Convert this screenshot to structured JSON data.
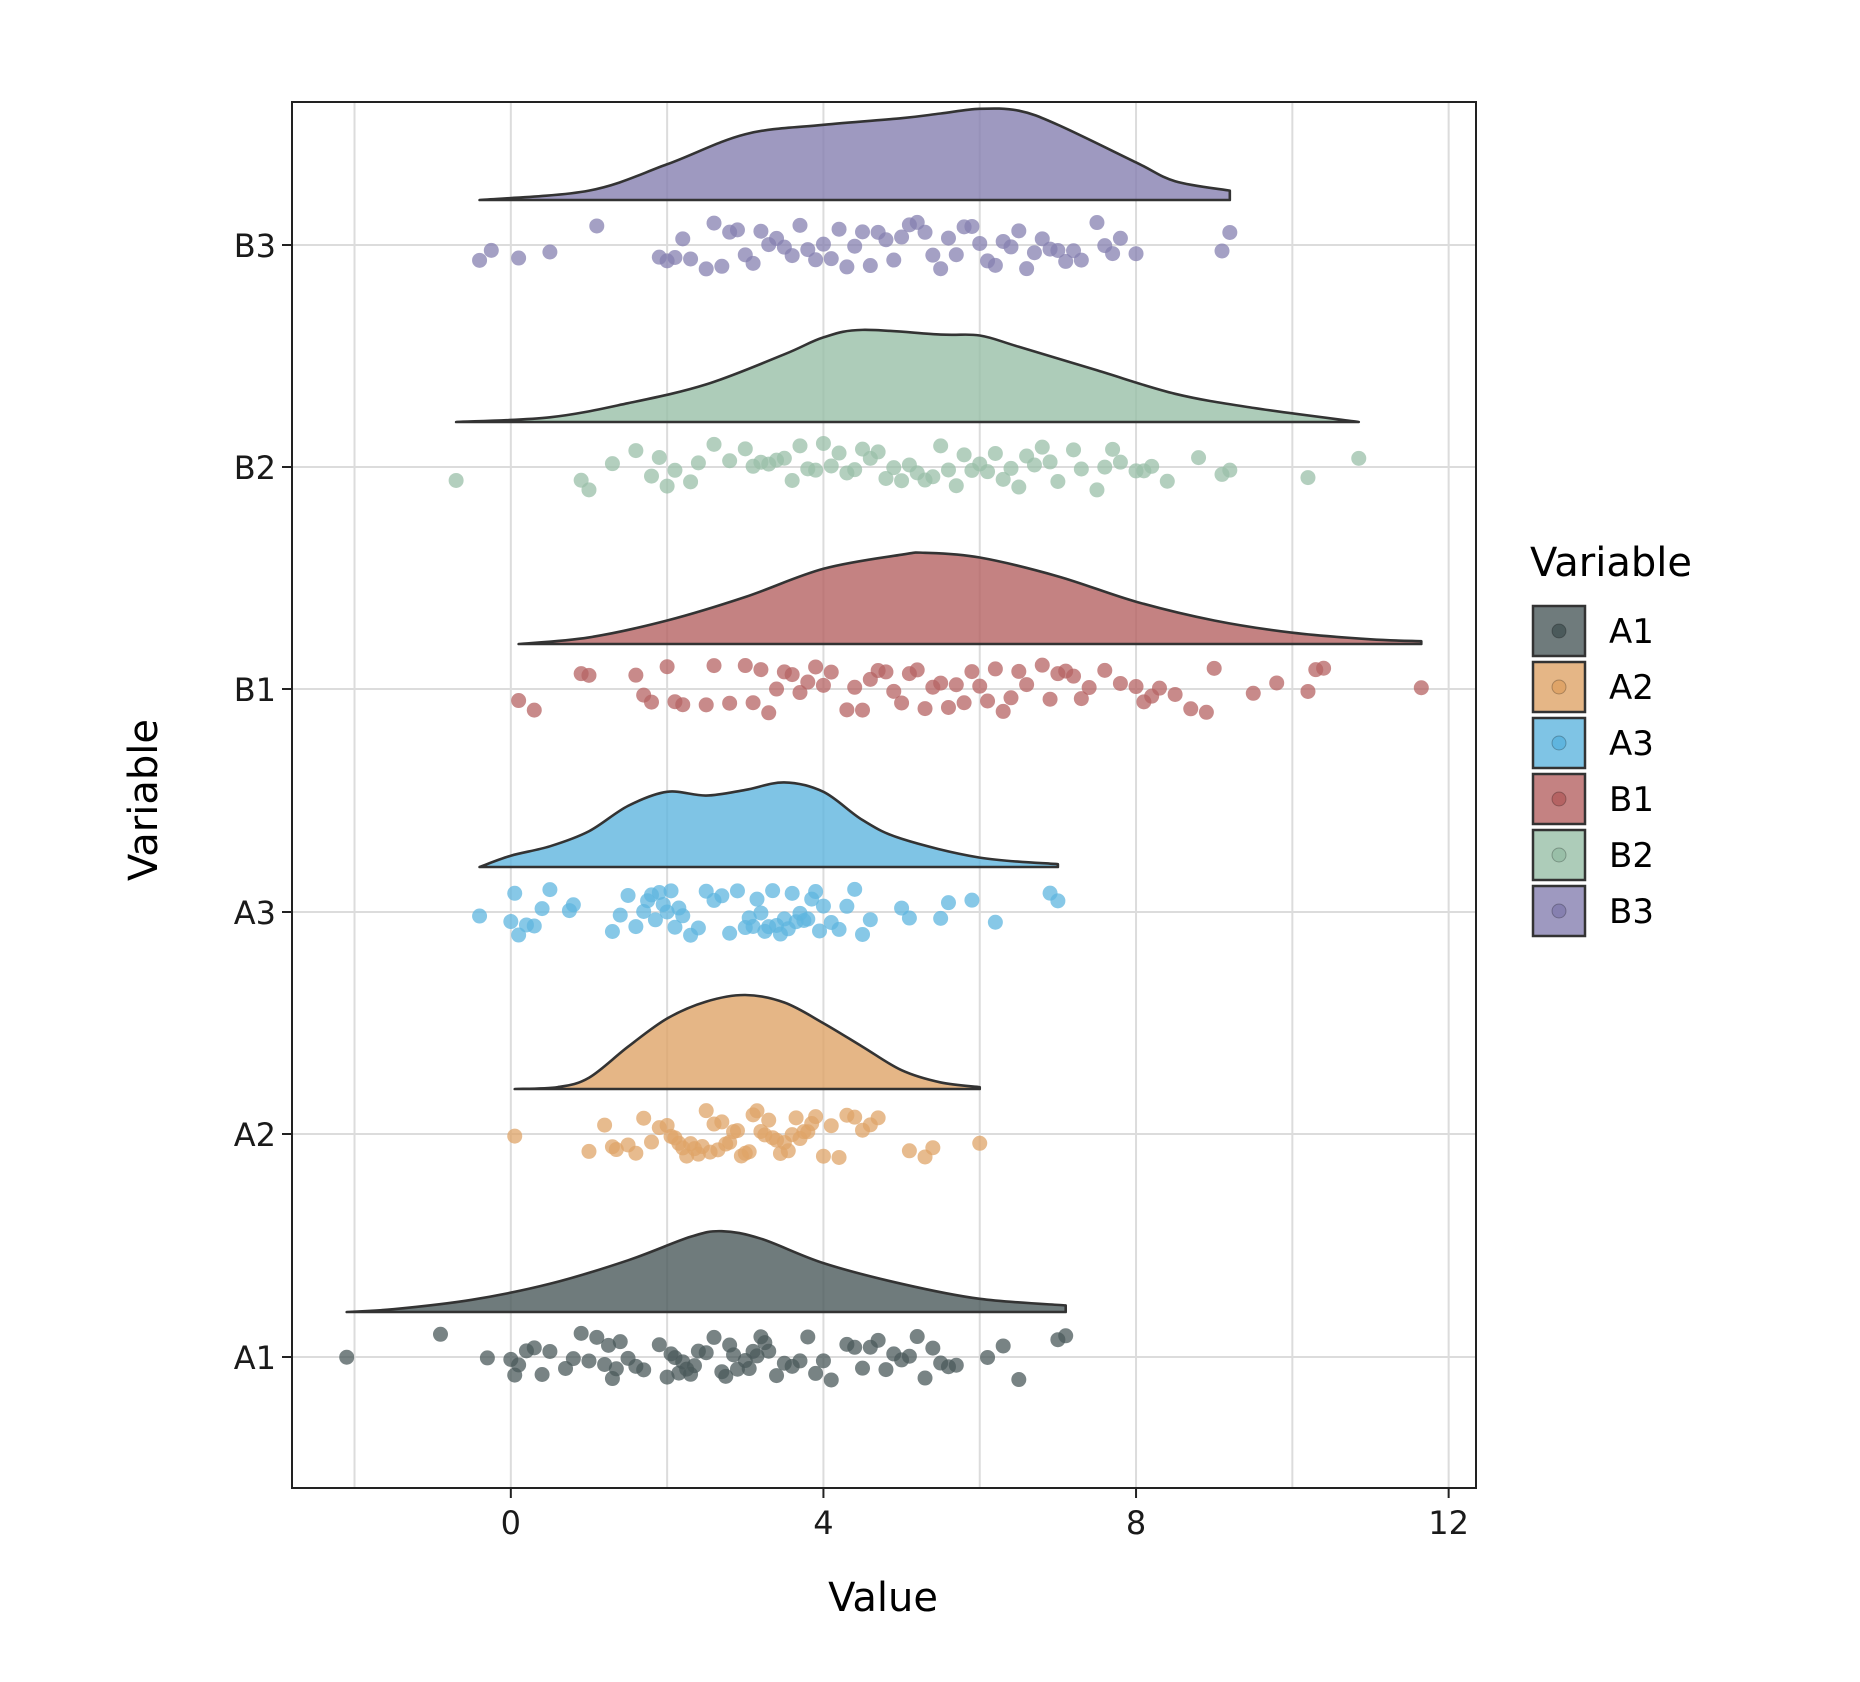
{
  "chart_data": {
    "type": "raincloud",
    "xlabel": "Value",
    "ylabel": "Variable",
    "xlim": [
      -2.8,
      12.35
    ],
    "x_ticks": [
      0,
      4,
      8,
      12
    ],
    "x_gridlines": [
      -2,
      0,
      2,
      4,
      6,
      8,
      10,
      12
    ],
    "grid": true,
    "legend": {
      "title": "Variable",
      "placement": "right"
    },
    "categories": [
      "A1",
      "A2",
      "A3",
      "B1",
      "B2",
      "B3"
    ],
    "series": [
      {
        "name": "A1",
        "color": "#4b5a5b",
        "min": -2.1,
        "max": 7.1,
        "density": [
          [
            -2.1,
            0.0
          ],
          [
            -1.5,
            0.03
          ],
          [
            -0.5,
            0.13
          ],
          [
            0.5,
            0.3
          ],
          [
            1.5,
            0.55
          ],
          [
            2.3,
            0.8
          ],
          [
            2.7,
            0.86
          ],
          [
            3.2,
            0.78
          ],
          [
            4.0,
            0.52
          ],
          [
            5.0,
            0.3
          ],
          [
            6.0,
            0.14
          ],
          [
            7.1,
            0.07
          ]
        ],
        "points": [
          -2.1,
          -0.9,
          -0.3,
          0.0,
          0.05,
          0.1,
          0.2,
          0.3,
          0.4,
          0.5,
          0.7,
          0.8,
          0.9,
          1.0,
          1.1,
          1.2,
          1.25,
          1.3,
          1.35,
          1.4,
          1.5,
          1.6,
          1.7,
          1.9,
          2.0,
          2.05,
          2.1,
          2.15,
          2.2,
          2.25,
          2.3,
          2.35,
          2.4,
          2.5,
          2.6,
          2.7,
          2.75,
          2.8,
          2.85,
          2.9,
          3.0,
          3.05,
          3.1,
          3.15,
          3.2,
          3.25,
          3.3,
          3.4,
          3.5,
          3.6,
          3.7,
          3.8,
          3.9,
          4.0,
          4.1,
          4.3,
          4.4,
          4.5,
          4.6,
          4.7,
          4.8,
          4.9,
          5.0,
          5.1,
          5.2,
          5.3,
          5.4,
          5.5,
          5.6,
          5.7,
          6.1,
          6.3,
          6.5,
          7.0,
          7.1
        ]
      },
      {
        "name": "A2",
        "color": "#dfa468",
        "min": 0.05,
        "max": 6.0,
        "density": [
          [
            0.05,
            0.0
          ],
          [
            0.6,
            0.02
          ],
          [
            1.0,
            0.12
          ],
          [
            1.5,
            0.45
          ],
          [
            2.0,
            0.75
          ],
          [
            2.5,
            0.93
          ],
          [
            3.0,
            1.0
          ],
          [
            3.5,
            0.92
          ],
          [
            4.0,
            0.7
          ],
          [
            4.5,
            0.45
          ],
          [
            5.0,
            0.2
          ],
          [
            5.5,
            0.07
          ],
          [
            6.0,
            0.02
          ]
        ],
        "points": [
          0.05,
          1.0,
          1.2,
          1.3,
          1.35,
          1.5,
          1.6,
          1.7,
          1.8,
          1.9,
          2.0,
          2.05,
          2.1,
          2.15,
          2.2,
          2.25,
          2.3,
          2.35,
          2.4,
          2.45,
          2.5,
          2.55,
          2.6,
          2.65,
          2.7,
          2.75,
          2.8,
          2.85,
          2.9,
          2.95,
          3.0,
          3.05,
          3.1,
          3.15,
          3.2,
          3.25,
          3.3,
          3.35,
          3.4,
          3.45,
          3.5,
          3.55,
          3.6,
          3.65,
          3.7,
          3.75,
          3.8,
          3.85,
          3.9,
          4.0,
          4.1,
          4.2,
          4.3,
          4.4,
          4.5,
          4.6,
          4.7,
          5.1,
          5.3,
          5.4,
          6.0
        ]
      },
      {
        "name": "A3",
        "color": "#5fb5df",
        "min": -0.4,
        "max": 7.0,
        "density": [
          [
            -0.4,
            0.0
          ],
          [
            0.0,
            0.12
          ],
          [
            0.5,
            0.22
          ],
          [
            1.0,
            0.38
          ],
          [
            1.5,
            0.65
          ],
          [
            2.0,
            0.8
          ],
          [
            2.5,
            0.76
          ],
          [
            3.0,
            0.82
          ],
          [
            3.5,
            0.9
          ],
          [
            4.0,
            0.8
          ],
          [
            4.5,
            0.5
          ],
          [
            5.0,
            0.3
          ],
          [
            6.0,
            0.1
          ],
          [
            7.0,
            0.03
          ]
        ],
        "points": [
          -0.4,
          0.0,
          0.05,
          0.1,
          0.2,
          0.3,
          0.4,
          0.5,
          0.75,
          0.8,
          1.3,
          1.4,
          1.5,
          1.6,
          1.7,
          1.75,
          1.8,
          1.85,
          1.9,
          1.95,
          2.0,
          2.05,
          2.1,
          2.15,
          2.2,
          2.3,
          2.4,
          2.5,
          2.6,
          2.7,
          2.8,
          2.9,
          3.0,
          3.05,
          3.1,
          3.15,
          3.2,
          3.25,
          3.3,
          3.35,
          3.4,
          3.45,
          3.5,
          3.55,
          3.6,
          3.65,
          3.7,
          3.75,
          3.8,
          3.85,
          3.9,
          3.95,
          4.0,
          4.1,
          4.2,
          4.3,
          4.4,
          4.5,
          4.6,
          5.0,
          5.1,
          5.5,
          5.6,
          5.9,
          6.2,
          6.9,
          7.0
        ]
      },
      {
        "name": "B1",
        "color": "#b56363",
        "min": 0.1,
        "max": 11.65,
        "density": [
          [
            0.1,
            0.0
          ],
          [
            1.0,
            0.07
          ],
          [
            2.0,
            0.25
          ],
          [
            3.0,
            0.5
          ],
          [
            4.0,
            0.8
          ],
          [
            5.0,
            0.95
          ],
          [
            5.3,
            0.97
          ],
          [
            6.0,
            0.92
          ],
          [
            7.0,
            0.72
          ],
          [
            8.0,
            0.45
          ],
          [
            9.0,
            0.25
          ],
          [
            10.0,
            0.12
          ],
          [
            11.0,
            0.05
          ],
          [
            11.65,
            0.03
          ]
        ],
        "points": [
          0.1,
          0.3,
          0.9,
          1.0,
          1.6,
          1.7,
          1.8,
          2.0,
          2.1,
          2.2,
          2.5,
          2.6,
          2.8,
          3.0,
          3.1,
          3.2,
          3.3,
          3.4,
          3.5,
          3.6,
          3.7,
          3.8,
          3.9,
          4.0,
          4.1,
          4.3,
          4.4,
          4.5,
          4.6,
          4.7,
          4.8,
          4.9,
          5.0,
          5.1,
          5.2,
          5.3,
          5.4,
          5.5,
          5.6,
          5.7,
          5.8,
          5.9,
          6.0,
          6.1,
          6.2,
          6.3,
          6.4,
          6.5,
          6.6,
          6.8,
          6.9,
          7.0,
          7.1,
          7.2,
          7.3,
          7.4,
          7.6,
          7.8,
          8.0,
          8.1,
          8.2,
          8.3,
          8.5,
          8.7,
          8.9,
          9.0,
          9.5,
          9.8,
          10.2,
          10.3,
          10.4,
          11.65
        ]
      },
      {
        "name": "B2",
        "color": "#99bfa8",
        "min": -0.7,
        "max": 10.85,
        "density": [
          [
            -0.7,
            0.0
          ],
          [
            0.5,
            0.05
          ],
          [
            1.5,
            0.2
          ],
          [
            2.5,
            0.4
          ],
          [
            3.5,
            0.72
          ],
          [
            4.0,
            0.9
          ],
          [
            4.5,
            0.98
          ],
          [
            5.5,
            0.93
          ],
          [
            6.0,
            0.92
          ],
          [
            6.5,
            0.8
          ],
          [
            7.5,
            0.55
          ],
          [
            8.5,
            0.3
          ],
          [
            9.5,
            0.15
          ],
          [
            10.85,
            0.0
          ]
        ],
        "points": [
          -0.7,
          0.9,
          1.0,
          1.3,
          1.6,
          1.8,
          1.9,
          2.0,
          2.1,
          2.3,
          2.4,
          2.6,
          2.8,
          3.0,
          3.1,
          3.2,
          3.3,
          3.4,
          3.5,
          3.6,
          3.7,
          3.8,
          3.9,
          4.0,
          4.1,
          4.2,
          4.3,
          4.4,
          4.5,
          4.6,
          4.7,
          4.8,
          4.9,
          5.0,
          5.1,
          5.2,
          5.3,
          5.4,
          5.5,
          5.6,
          5.7,
          5.8,
          5.9,
          6.0,
          6.1,
          6.2,
          6.3,
          6.4,
          6.5,
          6.6,
          6.7,
          6.8,
          6.9,
          7.0,
          7.2,
          7.3,
          7.5,
          7.6,
          7.7,
          7.8,
          8.0,
          8.1,
          8.2,
          8.4,
          8.8,
          9.1,
          9.2,
          10.2,
          10.85
        ]
      },
      {
        "name": "B3",
        "color": "#8680b0",
        "min": -0.4,
        "max": 9.2,
        "density": [
          [
            -0.4,
            0.0
          ],
          [
            1.0,
            0.1
          ],
          [
            2.0,
            0.38
          ],
          [
            3.0,
            0.7
          ],
          [
            4.0,
            0.8
          ],
          [
            5.0,
            0.87
          ],
          [
            5.5,
            0.92
          ],
          [
            6.0,
            0.97
          ],
          [
            6.5,
            0.95
          ],
          [
            7.0,
            0.8
          ],
          [
            8.0,
            0.4
          ],
          [
            8.5,
            0.2
          ],
          [
            9.2,
            0.1
          ]
        ],
        "points": [
          -0.4,
          -0.25,
          0.1,
          0.5,
          1.1,
          1.9,
          2.0,
          2.1,
          2.2,
          2.3,
          2.5,
          2.6,
          2.7,
          2.8,
          2.9,
          3.0,
          3.1,
          3.2,
          3.3,
          3.4,
          3.5,
          3.6,
          3.7,
          3.8,
          3.9,
          4.0,
          4.1,
          4.2,
          4.3,
          4.4,
          4.5,
          4.6,
          4.7,
          4.8,
          4.9,
          5.0,
          5.1,
          5.2,
          5.3,
          5.4,
          5.5,
          5.6,
          5.7,
          5.8,
          5.9,
          6.0,
          6.1,
          6.2,
          6.3,
          6.4,
          6.5,
          6.6,
          6.7,
          6.8,
          6.9,
          7.0,
          7.1,
          7.2,
          7.3,
          7.5,
          7.6,
          7.7,
          7.8,
          8.0,
          9.1,
          9.2
        ]
      }
    ]
  }
}
